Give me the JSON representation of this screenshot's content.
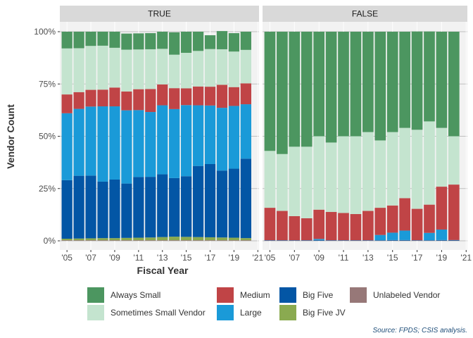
{
  "chart_data": {
    "type": "bar",
    "stacked": true,
    "facets": [
      "TRUE",
      "FALSE"
    ],
    "years": [
      2005,
      2006,
      2007,
      2008,
      2009,
      2010,
      2011,
      2012,
      2013,
      2014,
      2015,
      2016,
      2017,
      2018,
      2019,
      2020
    ],
    "x_tick_labels": [
      "'05",
      "'07",
      "'09",
      "'11",
      "'13",
      "'15",
      "'17",
      "'19",
      "'21"
    ],
    "x_tick_values": [
      2005,
      2007,
      2009,
      2011,
      2013,
      2015,
      2017,
      2019,
      2021
    ],
    "y_tick_labels": [
      "0%",
      "25%",
      "50%",
      "75%",
      "100%"
    ],
    "y_tick_values": [
      0,
      0.25,
      0.5,
      0.75,
      1.0
    ],
    "ylim": [
      0,
      1
    ],
    "xlabel": "Fiscal Year",
    "ylabel": "Vendor Count",
    "caption": "Source: FPDS; CSIS analysis.",
    "legend": {
      "position": "bottom",
      "items": [
        {
          "name": "Always Small",
          "color": "#4c9660"
        },
        {
          "name": "Sometimes Small Vendor",
          "color": "#c4e4cf"
        },
        {
          "name": "Medium",
          "color": "#c04446"
        },
        {
          "name": "Large",
          "color": "#1a9ad8"
        },
        {
          "name": "Big Five",
          "color": "#0356a5"
        },
        {
          "name": "Big Five JV",
          "color": "#8aaa50"
        },
        {
          "name": "Unlabeled Vendor",
          "color": "#977878"
        }
      ]
    },
    "stack_order_bottom_to_top": [
      "Unlabeled Vendor",
      "Big Five JV",
      "Big Five",
      "Large",
      "Medium",
      "Sometimes Small Vendor",
      "Always Small"
    ],
    "panels": [
      {
        "facet": "TRUE",
        "series": [
          {
            "name": "Unlabeled Vendor",
            "values": [
              0.003,
              0.003,
              0.003,
              0.003,
              0.003,
              0.003,
              0.003,
              0.003,
              0.003,
              0.003,
              0.003,
              0.003,
              0.003,
              0.003,
              0.003,
              0.003
            ]
          },
          {
            "name": "Big Five JV",
            "values": [
              0.007,
              0.008,
              0.009,
              0.01,
              0.01,
              0.011,
              0.012,
              0.013,
              0.015,
              0.017,
              0.016,
              0.015,
              0.014,
              0.013,
              0.012,
              0.01
            ]
          },
          {
            "name": "Big Five",
            "values": [
              0.28,
              0.3,
              0.3,
              0.27,
              0.28,
              0.26,
              0.29,
              0.29,
              0.3,
              0.28,
              0.29,
              0.34,
              0.35,
              0.32,
              0.33,
              0.38
            ]
          },
          {
            "name": "Large",
            "values": [
              0.32,
              0.32,
              0.33,
              0.36,
              0.35,
              0.35,
              0.32,
              0.31,
              0.33,
              0.33,
              0.34,
              0.29,
              0.28,
              0.3,
              0.3,
              0.26
            ]
          },
          {
            "name": "Medium",
            "values": [
              0.09,
              0.08,
              0.08,
              0.08,
              0.09,
              0.09,
              0.1,
              0.11,
              0.1,
              0.1,
              0.08,
              0.09,
              0.09,
              0.11,
              0.09,
              0.1
            ]
          },
          {
            "name": "Sometimes Small Vendor",
            "values": [
              0.22,
              0.21,
              0.21,
              0.21,
              0.19,
              0.2,
              0.19,
              0.19,
              0.17,
              0.16,
              0.17,
              0.17,
              0.18,
              0.17,
              0.17,
              0.16
            ]
          },
          {
            "name": "Always Small",
            "values": [
              0.08,
              0.079,
              0.068,
              0.067,
              0.077,
              0.077,
              0.077,
              0.077,
              0.082,
              0.107,
              0.101,
              0.092,
              0.066,
              0.087,
              0.088,
              0.087
            ]
          }
        ]
      },
      {
        "facet": "FALSE",
        "series": [
          {
            "name": "Unlabeled Vendor",
            "values": [
              0.001,
              0.001,
              0.001,
              0.001,
              0.001,
              0.001,
              0.001,
              0.001,
              0.001,
              0.001,
              0.001,
              0.001,
              0.001,
              0.001,
              0.001,
              0.001
            ]
          },
          {
            "name": "Big Five JV",
            "values": [
              0,
              0,
              0,
              0,
              0,
              0,
              0,
              0,
              0,
              0,
              0,
              0,
              0,
              0,
              0,
              0
            ]
          },
          {
            "name": "Big Five",
            "values": [
              0.002,
              0.002,
              0.002,
              0.002,
              0.003,
              0.002,
              0.002,
              0.002,
              0.002,
              0.002,
              0.003,
              0.003,
              0.002,
              0.002,
              0.003,
              0.003
            ]
          },
          {
            "name": "Large",
            "values": [
              0,
              0,
              0,
              0,
              0.005,
              0,
              0,
              0,
              0,
              0.025,
              0.035,
              0.045,
              0,
              0.035,
              0.05,
              0
            ]
          },
          {
            "name": "Medium",
            "values": [
              0.155,
              0.14,
              0.115,
              0.105,
              0.14,
              0.135,
              0.13,
              0.125,
              0.14,
              0.13,
              0.13,
              0.155,
              0.15,
              0.135,
              0.205,
              0.265
            ]
          },
          {
            "name": "Sometimes Small Vendor",
            "values": [
              0.272,
              0.272,
              0.332,
              0.342,
              0.351,
              0.332,
              0.367,
              0.372,
              0.377,
              0.322,
              0.351,
              0.336,
              0.378,
              0.398,
              0.281,
              0.231
            ]
          },
          {
            "name": "Always Small",
            "values": [
              0.57,
              0.585,
              0.55,
              0.55,
              0.5,
              0.53,
              0.5,
              0.5,
              0.48,
              0.52,
              0.48,
              0.46,
              0.47,
              0.43,
              0.46,
              0.5
            ]
          }
        ]
      }
    ]
  }
}
